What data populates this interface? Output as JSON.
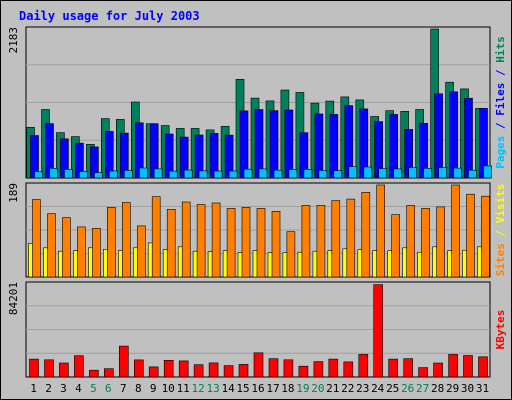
{
  "chart_data": [
    {
      "panel": "hits_files_pages",
      "type": "bar",
      "title": "Daily usage for July 2003",
      "ymax_label": "2183",
      "ylim": [
        0,
        2183
      ],
      "grid": true,
      "right_label": {
        "parts": [
          {
            "text": "Pages",
            "color": "#00c0ff"
          },
          {
            "text": " / ",
            "color": "#0000ff"
          },
          {
            "text": "Files",
            "color": "#0000ff"
          },
          {
            "text": " / ",
            "color": "#0000ff"
          },
          {
            "text": "Hits",
            "color": "#00805c"
          }
        ]
      },
      "categories": [
        "1",
        "2",
        "3",
        "4",
        "5",
        "6",
        "7",
        "8",
        "9",
        "10",
        "11",
        "12",
        "13",
        "14",
        "15",
        "16",
        "17",
        "18",
        "19",
        "20",
        "21",
        "22",
        "23",
        "24",
        "25",
        "26",
        "27",
        "28",
        "29",
        "30",
        "31"
      ],
      "series": [
        {
          "name": "Hits",
          "color": "#00805c",
          "values": [
            743,
            1004,
            665,
            607,
            494,
            870,
            858,
            1113,
            795,
            769,
            726,
            726,
            704,
            758,
            1446,
            1170,
            1130,
            1290,
            1253,
            1098,
            1126,
            1188,
            1144,
            901,
            986,
            977,
            1004,
            2183,
            1404,
            1305,
            1020
          ]
        },
        {
          "name": "Files",
          "color": "#0000ff",
          "values": [
            622,
            797,
            575,
            512,
            455,
            683,
            658,
            809,
            795,
            644,
            599,
            630,
            653,
            628,
            983,
            1004,
            987,
            997,
            663,
            938,
            932,
            1061,
            1013,
            826,
            930,
            712,
            801,
            1233,
            1263,
            1169,
            1020
          ]
        },
        {
          "name": "Pages",
          "color": "#00c0ff",
          "values": [
            96,
            142,
            128,
            96,
            77,
            103,
            111,
            147,
            133,
            101,
            116,
            106,
            103,
            102,
            129,
            133,
            115,
            126,
            128,
            112,
            108,
            167,
            161,
            138,
            133,
            154,
            142,
            154,
            145,
            115,
            177
          ]
        }
      ]
    },
    {
      "panel": "visits_sites",
      "type": "bar",
      "ymax_label": "189",
      "ylim": [
        0,
        189
      ],
      "grid": true,
      "right_label": {
        "parts": [
          {
            "text": "Sites",
            "color": "#ff8000"
          },
          {
            "text": " / ",
            "color": "#ffff00"
          },
          {
            "text": "Visits",
            "color": "#ffff00"
          }
        ]
      },
      "categories": [
        "1",
        "2",
        "3",
        "4",
        "5",
        "6",
        "7",
        "8",
        "9",
        "10",
        "11",
        "12",
        "13",
        "14",
        "15",
        "16",
        "17",
        "18",
        "19",
        "20",
        "21",
        "22",
        "23",
        "24",
        "25",
        "26",
        "27",
        "28",
        "29",
        "30",
        "31"
      ],
      "series": [
        {
          "name": "Visits",
          "color": "#ffff00",
          "values": [
            69,
            60,
            53,
            54,
            60,
            57,
            54,
            60,
            70,
            56,
            62,
            53,
            52,
            54,
            50,
            54,
            50,
            50,
            51,
            53,
            54,
            58,
            56,
            54,
            54,
            60,
            51,
            62,
            54,
            55,
            62
          ]
        },
        {
          "name": "Sites",
          "color": "#ff8000",
          "values": [
            159,
            130,
            122,
            103,
            100,
            143,
            153,
            105,
            165,
            139,
            154,
            149,
            152,
            141,
            143,
            141,
            135,
            93,
            147,
            147,
            157,
            160,
            174,
            189,
            128,
            147,
            141,
            144,
            189,
            170,
            166
          ]
        }
      ]
    },
    {
      "panel": "kbytes",
      "type": "bar",
      "ymax_label": "84201",
      "ylim": [
        0,
        84201
      ],
      "grid": true,
      "right_label": {
        "parts": [
          {
            "text": "KBytes",
            "color": "#ff0000"
          }
        ]
      },
      "categories": [
        "1",
        "2",
        "3",
        "4",
        "5",
        "6",
        "7",
        "8",
        "9",
        "10",
        "11",
        "12",
        "13",
        "14",
        "15",
        "16",
        "17",
        "18",
        "19",
        "20",
        "21",
        "22",
        "23",
        "24",
        "25",
        "26",
        "27",
        "28",
        "29",
        "30",
        "31"
      ],
      "series": [
        {
          "name": "KBytes",
          "color": "#ff0000",
          "values": [
            16200,
            15600,
            12700,
            19300,
            6200,
            7500,
            28000,
            15500,
            9100,
            15100,
            14600,
            11100,
            12800,
            10300,
            11400,
            21900,
            16600,
            15600,
            9800,
            13900,
            16200,
            13700,
            20500,
            83700,
            16200,
            16600,
            8500,
            12700,
            20500,
            19500,
            18300
          ]
        }
      ]
    }
  ],
  "day_labels": [
    {
      "text": "1",
      "color": "#000000"
    },
    {
      "text": "2",
      "color": "#000000"
    },
    {
      "text": "3",
      "color": "#000000"
    },
    {
      "text": "4",
      "color": "#000000"
    },
    {
      "text": "5",
      "color": "#00805c"
    },
    {
      "text": "6",
      "color": "#00805c"
    },
    {
      "text": "7",
      "color": "#000000"
    },
    {
      "text": "8",
      "color": "#000000"
    },
    {
      "text": "9",
      "color": "#000000"
    },
    {
      "text": "10",
      "color": "#000000"
    },
    {
      "text": "11",
      "color": "#000000"
    },
    {
      "text": "12",
      "color": "#00805c"
    },
    {
      "text": "13",
      "color": "#00805c"
    },
    {
      "text": "14",
      "color": "#000000"
    },
    {
      "text": "15",
      "color": "#000000"
    },
    {
      "text": "16",
      "color": "#000000"
    },
    {
      "text": "17",
      "color": "#000000"
    },
    {
      "text": "18",
      "color": "#000000"
    },
    {
      "text": "19",
      "color": "#00805c"
    },
    {
      "text": "20",
      "color": "#00805c"
    },
    {
      "text": "21",
      "color": "#000000"
    },
    {
      "text": "22",
      "color": "#000000"
    },
    {
      "text": "23",
      "color": "#000000"
    },
    {
      "text": "24",
      "color": "#000000"
    },
    {
      "text": "25",
      "color": "#000000"
    },
    {
      "text": "26",
      "color": "#00805c"
    },
    {
      "text": "27",
      "color": "#00805c"
    },
    {
      "text": "28",
      "color": "#000000"
    },
    {
      "text": "29",
      "color": "#000000"
    },
    {
      "text": "30",
      "color": "#000000"
    },
    {
      "text": "31",
      "color": "#000000"
    }
  ],
  "colors": {
    "background": "#c0c0c0",
    "title": "#0000ff",
    "grid": "#a0a0a0"
  }
}
